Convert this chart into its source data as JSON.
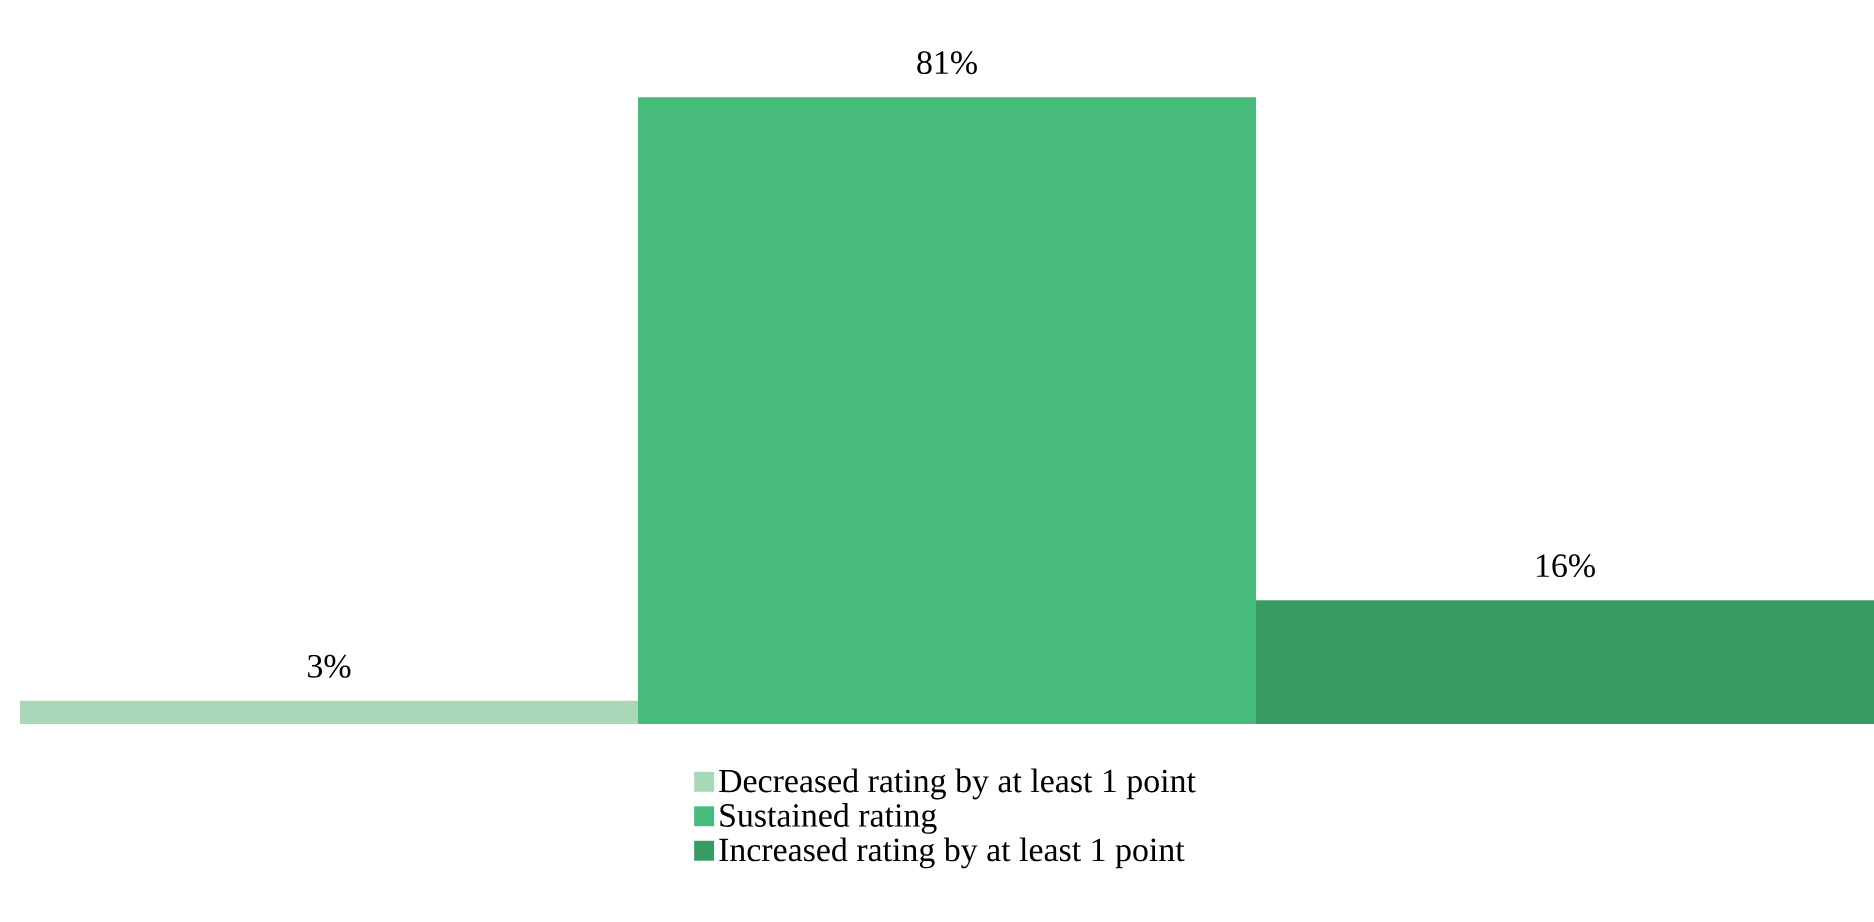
{
  "chart_data": {
    "type": "bar",
    "categories": [
      null
    ],
    "legend": "bottom",
    "series": [
      {
        "name": "Decreased rating by at least 1 point",
        "color": "#a9d8b8",
        "values": [
          3
        ],
        "value_labels": [
          "3%"
        ]
      },
      {
        "name": "Sustained rating",
        "color": "#46bb7b",
        "values": [
          81
        ],
        "value_labels": [
          "81%"
        ]
      },
      {
        "name": "Increased rating by at least 1 point",
        "color": "#379b63",
        "values": [
          16
        ],
        "value_labels": [
          "16%"
        ]
      }
    ]
  }
}
